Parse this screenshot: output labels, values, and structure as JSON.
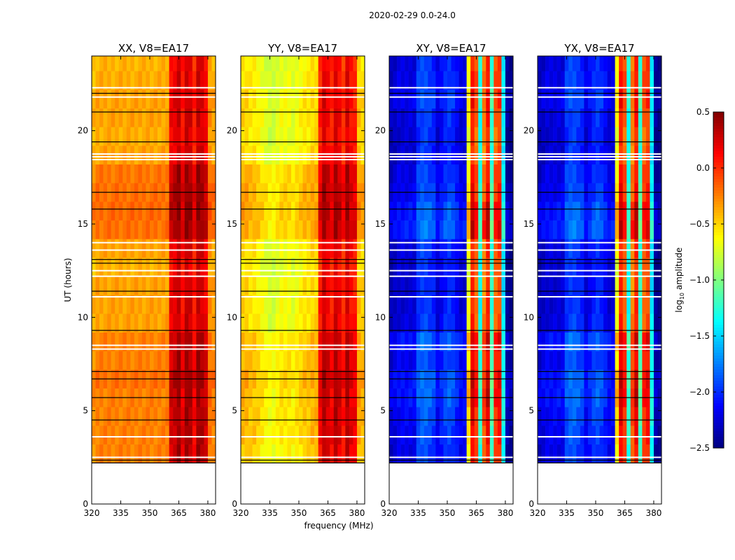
{
  "chart_data": {
    "type": "heatmap",
    "title": "2020-02-29 0.0-24.0",
    "xlabel": "frequency (MHz)",
    "ylabel": "UT (hours)",
    "xlim": [
      320,
      384
    ],
    "ylim": [
      0,
      24
    ],
    "xticks": [
      "320",
      "335",
      "350",
      "365",
      "380"
    ],
    "xtick_values": [
      320,
      335,
      350,
      365,
      380
    ],
    "yticks": [
      "0",
      "5",
      "10",
      "15",
      "20"
    ],
    "ytick_values": [
      0,
      5,
      10,
      15,
      20
    ],
    "freq_bin_start": 320,
    "freq_bin_width": 2,
    "time_bin_start": 2.2,
    "time_bin_width": 1,
    "colorbar": {
      "label": "log",
      "label_sub": "10",
      "label_rest": " amplitude",
      "range": [
        -2.5,
        0.5
      ],
      "ticks": [
        "0.5",
        "0.0",
        "−0.5",
        "−1.0",
        "−1.5",
        "−2.0",
        "−2.5"
      ],
      "tick_values": [
        0.5,
        0.0,
        -0.5,
        -1.0,
        -1.5,
        -2.0,
        -2.5
      ],
      "colormap": "jet"
    },
    "panels": [
      {
        "title": "XX, V8=EA17",
        "freq_profile": [
          -0.35,
          -0.3,
          -0.3,
          -0.3,
          -0.3,
          -0.3,
          -0.3,
          -0.3,
          -0.3,
          -0.3,
          -0.3,
          -0.3,
          -0.3,
          -0.3,
          -0.3,
          -0.3,
          -0.3,
          -0.3,
          -0.3,
          -0.3,
          0.2,
          0.25,
          0.35,
          0.15,
          0.35,
          0.3,
          0.1,
          0.35,
          0.3,
          0.2,
          -0.25,
          -0.3
        ],
        "time_offset": [
          0.05,
          0.05,
          0.05,
          0.05,
          0.1,
          0.05,
          0.05,
          -0.05,
          -0.05,
          -0.05,
          -0.1,
          -0.05,
          0.1,
          0.12,
          0.1,
          0.08,
          -0.05,
          -0.08,
          -0.05,
          -0.05,
          -0.08,
          -0.1
        ]
      },
      {
        "title": "YY, V8=EA17",
        "freq_profile": [
          -0.45,
          -0.45,
          -0.5,
          -0.5,
          -0.55,
          -0.6,
          -0.65,
          -0.7,
          -0.7,
          -0.65,
          -0.6,
          -0.6,
          -0.6,
          -0.65,
          -0.6,
          -0.55,
          -0.5,
          -0.5,
          -0.45,
          -0.45,
          0.1,
          0.3,
          0.2,
          0.1,
          0.3,
          0.2,
          0.05,
          0.3,
          0.15,
          0.1,
          -0.4,
          -0.45
        ],
        "time_offset": [
          0.0,
          0.05,
          0.05,
          0.05,
          0.1,
          0.05,
          0.05,
          -0.05,
          -0.05,
          -0.05,
          -0.1,
          -0.05,
          0.1,
          0.12,
          0.1,
          0.08,
          -0.05,
          -0.08,
          -0.05,
          -0.05,
          -0.08,
          -0.1
        ]
      },
      {
        "title": "XY, V8=EA17",
        "freq_profile": [
          -2.3,
          -2.25,
          -2.2,
          -2.2,
          -2.2,
          -2.2,
          -2.2,
          -1.95,
          -1.9,
          -1.9,
          -1.95,
          -2.0,
          -2.2,
          -2.1,
          -2.0,
          -1.95,
          -2.0,
          -2.1,
          -2.2,
          -2.2,
          -0.6,
          0.1,
          -0.1,
          -1.3,
          -0.2,
          0.1,
          -1.2,
          -0.1,
          0.0,
          -1.4,
          -2.4,
          -2.45
        ],
        "time_offset": [
          0.0,
          0.05,
          0.1,
          0.2,
          0.2,
          0.05,
          0.2,
          -0.05,
          -0.1,
          -0.1,
          -0.1,
          -0.05,
          0.25,
          0.2,
          0.05,
          0.0,
          -0.1,
          -0.1,
          -0.05,
          0.05,
          0.0,
          -0.05
        ]
      },
      {
        "title": "YX, V8=EA17",
        "freq_profile": [
          -2.3,
          -2.25,
          -2.2,
          -2.2,
          -2.2,
          -2.2,
          -2.2,
          -1.95,
          -1.9,
          -1.9,
          -1.95,
          -2.0,
          -2.2,
          -2.1,
          -2.0,
          -1.95,
          -2.0,
          -2.1,
          -2.2,
          -2.2,
          -0.6,
          0.1,
          -0.1,
          -1.3,
          -0.2,
          0.1,
          -1.2,
          -0.1,
          0.0,
          -1.4,
          -2.4,
          -2.45
        ],
        "time_offset": [
          0.0,
          0.05,
          0.1,
          0.2,
          0.2,
          0.05,
          0.2,
          -0.05,
          -0.1,
          -0.1,
          -0.1,
          -0.05,
          0.25,
          0.2,
          0.05,
          0.0,
          -0.1,
          -0.1,
          -0.05,
          0.05,
          0.0,
          -0.05
        ]
      }
    ],
    "flagged_white_hours": [
      2.5,
      3.6,
      8.3,
      8.5,
      11.1,
      12.2,
      12.5,
      13.6,
      14.0,
      18.45,
      18.6,
      18.75,
      21.8,
      22.3
    ],
    "flagged_black_hours": [
      2.2,
      2.35,
      4.5,
      5.7,
      6.7,
      7.1,
      9.3,
      11.4,
      12.9,
      13.1,
      15.8,
      16.7,
      19.4,
      21.0,
      22.0
    ]
  }
}
